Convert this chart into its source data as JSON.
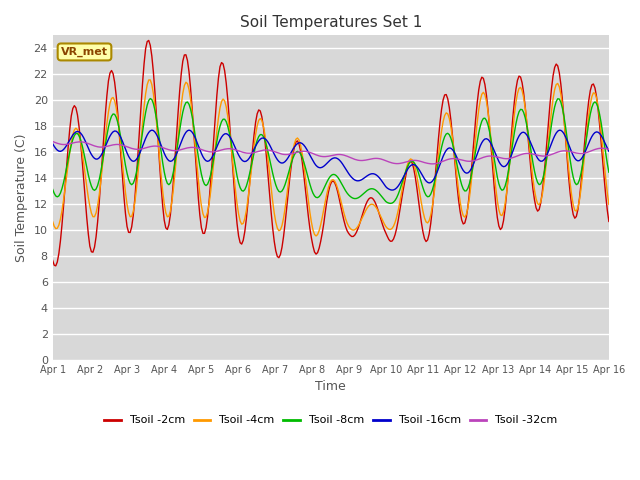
{
  "title": "Soil Temperatures Set 1",
  "xlabel": "Time",
  "ylabel": "Soil Temperature (C)",
  "ylim": [
    0,
    25
  ],
  "yticks": [
    0,
    2,
    4,
    6,
    8,
    10,
    12,
    14,
    16,
    18,
    20,
    22,
    24
  ],
  "xtick_labels": [
    "Apr 1",
    "Apr 2",
    "Apr 3",
    "Apr 4",
    "Apr 5",
    "Apr 6",
    "Apr 7",
    "Apr 8",
    "Apr 9",
    "Apr 10",
    "Apr 11",
    "Apr 12",
    "Apr 13",
    "Apr 14",
    "Apr 15",
    "Apr 16"
  ],
  "bg_color": "#d8d8d8",
  "fig_color": "#ffffff",
  "lines": [
    {
      "label": "Tsoil -2cm",
      "color": "#cc0000",
      "lw": 1.0
    },
    {
      "label": "Tsoil -4cm",
      "color": "#ff9900",
      "lw": 1.0
    },
    {
      "label": "Tsoil -8cm",
      "color": "#00bb00",
      "lw": 1.0
    },
    {
      "label": "Tsoil -16cm",
      "color": "#0000cc",
      "lw": 1.0
    },
    {
      "label": "Tsoil -32cm",
      "color": "#bb44bb",
      "lw": 1.0
    }
  ],
  "annotation_text": "VR_met",
  "annotation_fontsize": 8,
  "title_fontsize": 11,
  "axis_label_fontsize": 9,
  "tick_fontsize": 8
}
